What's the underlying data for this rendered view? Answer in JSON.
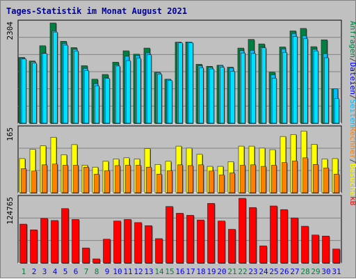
{
  "title": "Tages-Statistik im Monat August 2021",
  "colors": {
    "background": "#c0c0c0",
    "title": "#0000a0",
    "hits": "#008040",
    "files": "#00c0ff",
    "pages": "#00e0ff",
    "visits": "#ffff00",
    "sites": "#ff8000",
    "kbytes": "#ff0000",
    "label_green": "#008040",
    "label_blue": "#0000ff",
    "label_gray": "#404040"
  },
  "chart_data": [
    {
      "type": "bar",
      "panel": "top",
      "ymax_label": "2304",
      "ylim": [
        0,
        2304
      ],
      "right_label": [
        {
          "text": "Anfragen",
          "color": "#008040"
        },
        {
          "text": "/",
          "color": "#404040"
        },
        {
          "text": "Dateien",
          "color": "#0000ff"
        },
        {
          "text": "/",
          "color": "#404040"
        },
        {
          "text": "Seiten",
          "color": "#00c0ff"
        }
      ],
      "categories": [
        "1",
        "2",
        "3",
        "4",
        "5",
        "6",
        "7",
        "8",
        "9",
        "10",
        "11",
        "12",
        "13",
        "14",
        "15",
        "16",
        "17",
        "18",
        "19",
        "20",
        "21",
        "22",
        "23",
        "24",
        "25",
        "26",
        "27",
        "28",
        "29",
        "30",
        "31"
      ],
      "series": [
        {
          "name": "Anfragen",
          "values": [
            1511,
            1429,
            1780,
            2304,
            1883,
            1737,
            1321,
            1012,
            1120,
            1402,
            1664,
            1587,
            1727,
            1170,
            1011,
            1862,
            1867,
            1354,
            1307,
            1332,
            1287,
            1727,
            1926,
            1822,
            1171,
            1752,
            2121,
            2179,
            1759,
            1917,
            788
          ]
        },
        {
          "name": "Dateien",
          "values": [
            1492,
            1413,
            1610,
            2123,
            1835,
            1700,
            1260,
            909,
            1043,
            1342,
            1540,
            1555,
            1616,
            1163,
            1005,
            1862,
            1867,
            1319,
            1282,
            1325,
            1267,
            1670,
            1676,
            1748,
            1111,
            1707,
            2062,
            2009,
            1698,
            1598,
            788
          ]
        },
        {
          "name": "Seiten",
          "values": [
            1476,
            1381,
            1604,
            2094,
            1795,
            1659,
            1209,
            859,
            1030,
            1314,
            1438,
            1492,
            1575,
            1128,
            980,
            1846,
            1851,
            1275,
            1246,
            1285,
            1192,
            1614,
            1602,
            1733,
            1036,
            1626,
            1995,
            1945,
            1660,
            1504,
            565
          ]
        }
      ]
    },
    {
      "type": "bar",
      "panel": "middle",
      "ymax_label": "165",
      "ylim": [
        0,
        165
      ],
      "right_label": [
        {
          "text": "Rechner",
          "color": "#ff8000"
        },
        {
          "text": "/",
          "color": "#404040"
        },
        {
          "text": "Besuche",
          "color": "#ffff00"
        }
      ],
      "categories": [
        "1",
        "2",
        "3",
        "4",
        "5",
        "6",
        "7",
        "8",
        "9",
        "10",
        "11",
        "12",
        "13",
        "14",
        "15",
        "16",
        "17",
        "18",
        "19",
        "20",
        "21",
        "22",
        "23",
        "24",
        "25",
        "26",
        "27",
        "28",
        "29",
        "30",
        "31"
      ],
      "series": [
        {
          "name": "Besuche",
          "values": [
            88,
            112,
            121,
            143,
            98,
            124,
            71,
            66,
            81,
            87,
            90,
            87,
            114,
            73,
            81,
            120,
            115,
            99,
            68,
            68,
            80,
            120,
            120,
            115,
            111,
            145,
            150,
            159,
            125,
            87,
            88
          ]
        },
        {
          "name": "Rechner",
          "values": [
            62,
            56,
            72,
            74,
            71,
            71,
            66,
            48,
            57,
            70,
            71,
            71,
            66,
            48,
            57,
            72,
            70,
            72,
            56,
            46,
            51,
            71,
            72,
            68,
            71,
            78,
            82,
            90,
            73,
            64,
            48
          ]
        }
      ]
    },
    {
      "type": "bar",
      "panel": "bottom",
      "ymax_label": "124765",
      "ylim": [
        0,
        124765
      ],
      "right_label": [
        {
          "text": "kB",
          "color": "#ff0000"
        }
      ],
      "categories": [
        "1",
        "2",
        "3",
        "4",
        "5",
        "6",
        "7",
        "8",
        "9",
        "10",
        "11",
        "12",
        "13",
        "14",
        "15",
        "16",
        "17",
        "18",
        "19",
        "20",
        "21",
        "22",
        "23",
        "24",
        "25",
        "26",
        "27",
        "28",
        "29",
        "30",
        "31"
      ],
      "series": [
        {
          "name": "kB",
          "values": [
            75000,
            64000,
            86000,
            82000,
            105000,
            84000,
            29000,
            8000,
            46000,
            81000,
            84000,
            78000,
            72000,
            47000,
            109000,
            96000,
            92000,
            83000,
            115000,
            81000,
            65000,
            124765,
            107000,
            33000,
            110000,
            103000,
            87000,
            71000,
            54000,
            52000,
            27000
          ]
        }
      ]
    }
  ],
  "x_labels": [
    {
      "text": "1",
      "color": "#008040"
    },
    {
      "text": "2",
      "color": "#0000ff"
    },
    {
      "text": "3",
      "color": "#0000ff"
    },
    {
      "text": "4",
      "color": "#0000ff"
    },
    {
      "text": "5",
      "color": "#0000ff"
    },
    {
      "text": "6",
      "color": "#0000ff"
    },
    {
      "text": "7",
      "color": "#008040"
    },
    {
      "text": "8",
      "color": "#008040"
    },
    {
      "text": "9",
      "color": "#0000ff"
    },
    {
      "text": "10",
      "color": "#0000ff"
    },
    {
      "text": "11",
      "color": "#0000ff"
    },
    {
      "text": "12",
      "color": "#0000ff"
    },
    {
      "text": "13",
      "color": "#0000ff"
    },
    {
      "text": "14",
      "color": "#008040"
    },
    {
      "text": "15",
      "color": "#008040"
    },
    {
      "text": "16",
      "color": "#0000ff"
    },
    {
      "text": "17",
      "color": "#0000ff"
    },
    {
      "text": "18",
      "color": "#0000ff"
    },
    {
      "text": "19",
      "color": "#0000ff"
    },
    {
      "text": "20",
      "color": "#0000ff"
    },
    {
      "text": "21",
      "color": "#008040"
    },
    {
      "text": "22",
      "color": "#008040"
    },
    {
      "text": "23",
      "color": "#0000ff"
    },
    {
      "text": "24",
      "color": "#0000ff"
    },
    {
      "text": "25",
      "color": "#0000ff"
    },
    {
      "text": "26",
      "color": "#0000ff"
    },
    {
      "text": "27",
      "color": "#0000ff"
    },
    {
      "text": "28",
      "color": "#008040"
    },
    {
      "text": "29",
      "color": "#008040"
    },
    {
      "text": "30",
      "color": "#0000ff"
    },
    {
      "text": "31",
      "color": "#0000ff"
    }
  ]
}
